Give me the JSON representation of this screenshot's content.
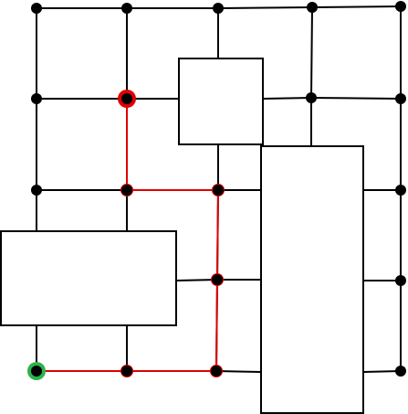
{
  "colors": {
    "background": "#ffffff",
    "grid_line": "#000000",
    "node": "#000000",
    "path": "#e00000",
    "start_marker": "#2db34a",
    "end_marker": "#e00000",
    "block_fill": "#ffffff",
    "block_stroke": "#000000"
  },
  "graph": {
    "node_count": 24,
    "path_length": 6,
    "start_marker": "green",
    "end_marker": "red"
  }
}
